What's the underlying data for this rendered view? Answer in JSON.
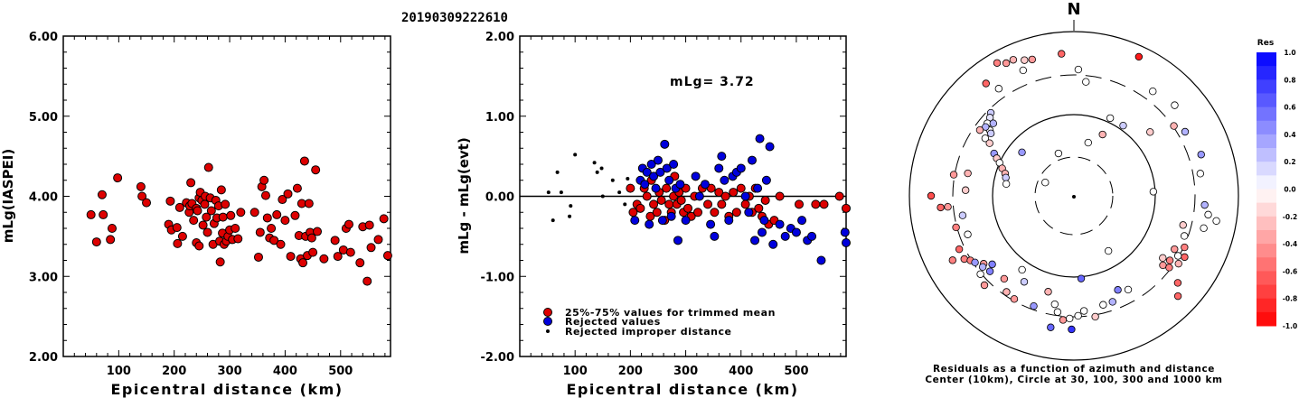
{
  "title": "20190309222610",
  "left_panel": {
    "ylabel": "mLg(IASPEI)",
    "xlabel": "Epicentral distance (km)",
    "yticks": [
      "2.00",
      "3.00",
      "4.00",
      "5.00",
      "6.00"
    ],
    "xticks": [
      "100",
      "200",
      "300",
      "400",
      "500"
    ]
  },
  "middle_panel": {
    "ylabel": "mLg - mLg(evt)",
    "xlabel": "Epicentral distance (km)",
    "yticks": [
      "-2.00",
      "-1.00",
      "0.00",
      "1.00",
      "2.00"
    ],
    "xticks": [
      "100",
      "200",
      "300",
      "400",
      "500"
    ],
    "annotation": "mLg= 3.72",
    "legend": [
      {
        "label": "25%-75% values for trimmed mean",
        "color": "#dd0000"
      },
      {
        "label": "Rejected values",
        "color": "#0000dd"
      },
      {
        "label": "Rejected improper distance",
        "color": "#000000"
      }
    ]
  },
  "polar_panel": {
    "north_label": "N",
    "caption_line1": "Residuals as a function of azimuth and distance",
    "caption_line2": "Center (10km), Circle at 30, 100, 300 and 1000 km"
  },
  "colorbar": {
    "title": "Res",
    "ticks": [
      "1.0",
      "0.8",
      "0.6",
      "0.4",
      "0.2",
      "0.0",
      "-0.2",
      "-0.4",
      "-0.6",
      "-0.8",
      "-1.0"
    ]
  },
  "chart_data": [
    {
      "type": "scatter",
      "title": "20190309222610",
      "xlabel": "Epicentral distance (km)",
      "ylabel": "mLg(IASPEI)",
      "xlim": [
        0,
        590
      ],
      "ylim": [
        2,
        6
      ],
      "series": [
        {
          "color": "#dd0000",
          "points": [
            [
              50,
              3.77
            ],
            [
              60,
              3.43
            ],
            [
              70,
              4.02
            ],
            [
              72,
              3.77
            ],
            [
              85,
              3.46
            ],
            [
              88,
              3.6
            ],
            [
              98,
              4.23
            ],
            [
              140,
              4.12
            ],
            [
              142,
              4.0
            ],
            [
              150,
              3.92
            ],
            [
              190,
              3.65
            ],
            [
              193,
              3.94
            ],
            [
              195,
              3.58
            ],
            [
              205,
              3.61
            ],
            [
              206,
              3.41
            ],
            [
              210,
              3.86
            ],
            [
              215,
              3.5
            ],
            [
              222,
              3.92
            ],
            [
              227,
              3.8
            ],
            [
              228,
              3.88
            ],
            [
              230,
              4.17
            ],
            [
              232,
              3.91
            ],
            [
              235,
              3.7
            ],
            [
              240,
              3.85
            ],
            [
              240,
              3.42
            ],
            [
              242,
              3.82
            ],
            [
              245,
              3.98
            ],
            [
              245,
              3.38
            ],
            [
              247,
              4.05
            ],
            [
              250,
              3.95
            ],
            [
              252,
              3.64
            ],
            [
              255,
              3.9
            ],
            [
              256,
              4.0
            ],
            [
              258,
              3.74
            ],
            [
              260,
              3.55
            ],
            [
              262,
              4.36
            ],
            [
              265,
              3.98
            ],
            [
              267,
              3.82
            ],
            [
              270,
              3.4
            ],
            [
              272,
              3.66
            ],
            [
              275,
              3.95
            ],
            [
              277,
              3.73
            ],
            [
              280,
              3.88
            ],
            [
              282,
              3.44
            ],
            [
              283,
              3.18
            ],
            [
              285,
              4.08
            ],
            [
              287,
              3.54
            ],
            [
              288,
              3.74
            ],
            [
              290,
              3.4
            ],
            [
              292,
              3.9
            ],
            [
              294,
              3.44
            ],
            [
              297,
              3.5
            ],
            [
              300,
              3.58
            ],
            [
              302,
              3.76
            ],
            [
              305,
              3.46
            ],
            [
              310,
              3.6
            ],
            [
              315,
              3.47
            ],
            [
              320,
              3.8
            ],
            [
              345,
              3.8
            ],
            [
              352,
              3.24
            ],
            [
              355,
              3.55
            ],
            [
              358,
              4.12
            ],
            [
              362,
              4.2
            ],
            [
              365,
              4.01
            ],
            [
              368,
              3.73
            ],
            [
              372,
              3.48
            ],
            [
              375,
              3.6
            ],
            [
              380,
              3.45
            ],
            [
              385,
              3.77
            ],
            [
              392,
              3.4
            ],
            [
              395,
              3.96
            ],
            [
              400,
              3.7
            ],
            [
              405,
              4.03
            ],
            [
              410,
              3.25
            ],
            [
              418,
              3.76
            ],
            [
              422,
              4.1
            ],
            [
              425,
              3.51
            ],
            [
              428,
              3.22
            ],
            [
              430,
              3.91
            ],
            [
              432,
              3.17
            ],
            [
              435,
              4.44
            ],
            [
              437,
              3.5
            ],
            [
              440,
              3.26
            ],
            [
              443,
              3.91
            ],
            [
              445,
              3.55
            ],
            [
              448,
              3.48
            ],
            [
              450,
              3.3
            ],
            [
              455,
              4.33
            ],
            [
              458,
              3.56
            ],
            [
              470,
              3.22
            ],
            [
              490,
              3.45
            ],
            [
              495,
              3.25
            ],
            [
              505,
              3.33
            ],
            [
              510,
              3.6
            ],
            [
              515,
              3.65
            ],
            [
              518,
              3.3
            ],
            [
              535,
              3.17
            ],
            [
              540,
              3.62
            ],
            [
              548,
              2.94
            ],
            [
              552,
              3.64
            ],
            [
              555,
              3.36
            ],
            [
              568,
              3.46
            ],
            [
              578,
              3.72
            ],
            [
              585,
              3.26
            ]
          ]
        }
      ]
    },
    {
      "type": "scatter",
      "xlabel": "Epicentral distance (km)",
      "ylabel": "mLg - mLg(evt)",
      "xlim": [
        0,
        590
      ],
      "ylim": [
        -2,
        2
      ],
      "series": [
        {
          "name": "25%-75% values for trimmed mean",
          "color": "#dd0000",
          "points": [
            [
              200,
              0.1
            ],
            [
              205,
              -0.2
            ],
            [
              212,
              -0.1
            ],
            [
              218,
              -0.15
            ],
            [
              225,
              0.1
            ],
            [
              230,
              0.0
            ],
            [
              236,
              -0.25
            ],
            [
              238,
              0.2
            ],
            [
              242,
              -0.1
            ],
            [
              248,
              -0.2
            ],
            [
              252,
              0.05
            ],
            [
              256,
              -0.05
            ],
            [
              262,
              -0.3
            ],
            [
              265,
              0.1
            ],
            [
              270,
              -0.1
            ],
            [
              274,
              -0.2
            ],
            [
              278,
              0.0
            ],
            [
              280,
              0.25
            ],
            [
              284,
              -0.1
            ],
            [
              288,
              0.05
            ],
            [
              292,
              -0.05
            ],
            [
              296,
              -0.2
            ],
            [
              300,
              0.1
            ],
            [
              304,
              -0.15
            ],
            [
              310,
              -0.25
            ],
            [
              316,
              0.0
            ],
            [
              322,
              -0.2
            ],
            [
              330,
              0.1
            ],
            [
              340,
              -0.1
            ],
            [
              346,
              0.1
            ],
            [
              352,
              -0.2
            ],
            [
              360,
              0.05
            ],
            [
              365,
              -0.1
            ],
            [
              372,
              0.0
            ],
            [
              378,
              -0.25
            ],
            [
              386,
              0.05
            ],
            [
              392,
              -0.2
            ],
            [
              400,
              0.1
            ],
            [
              408,
              -0.1
            ],
            [
              415,
              0.0
            ],
            [
              420,
              -0.2
            ],
            [
              426,
              0.1
            ],
            [
              432,
              -0.15
            ],
            [
              438,
              -0.25
            ],
            [
              444,
              -0.05
            ],
            [
              450,
              -0.35
            ],
            [
              460,
              -0.3
            ],
            [
              470,
              0.0
            ],
            [
              505,
              -0.1
            ],
            [
              535,
              -0.1
            ],
            [
              550,
              -0.1
            ],
            [
              578,
              0.0
            ],
            [
              590,
              -0.15
            ]
          ]
        },
        {
          "name": "Rejected values",
          "color": "#0000dd",
          "points": [
            [
              208,
              -0.3
            ],
            [
              218,
              0.2
            ],
            [
              222,
              0.35
            ],
            [
              226,
              0.15
            ],
            [
              230,
              0.3
            ],
            [
              234,
              -0.35
            ],
            [
              238,
              0.4
            ],
            [
              242,
              0.25
            ],
            [
              246,
              0.1
            ],
            [
              250,
              0.45
            ],
            [
              254,
              0.3
            ],
            [
              258,
              -0.3
            ],
            [
              262,
              0.65
            ],
            [
              266,
              0.35
            ],
            [
              270,
              0.2
            ],
            [
              274,
              -0.25
            ],
            [
              278,
              0.4
            ],
            [
              282,
              0.1
            ],
            [
              286,
              -0.55
            ],
            [
              290,
              0.15
            ],
            [
              300,
              -0.3
            ],
            [
              318,
              0.25
            ],
            [
              325,
              0.0
            ],
            [
              335,
              0.15
            ],
            [
              345,
              -0.35
            ],
            [
              352,
              -0.5
            ],
            [
              360,
              0.35
            ],
            [
              365,
              0.5
            ],
            [
              370,
              0.2
            ],
            [
              378,
              -0.3
            ],
            [
              385,
              0.25
            ],
            [
              392,
              0.3
            ],
            [
              400,
              0.35
            ],
            [
              408,
              0.0
            ],
            [
              414,
              -0.2
            ],
            [
              420,
              0.45
            ],
            [
              425,
              -0.55
            ],
            [
              430,
              0.1
            ],
            [
              434,
              0.72
            ],
            [
              438,
              -0.45
            ],
            [
              442,
              -0.3
            ],
            [
              446,
              0.2
            ],
            [
              452,
              0.62
            ],
            [
              458,
              -0.6
            ],
            [
              470,
              -0.35
            ],
            [
              480,
              -0.5
            ],
            [
              490,
              -0.4
            ],
            [
              500,
              -0.45
            ],
            [
              510,
              -0.3
            ],
            [
              520,
              -0.55
            ],
            [
              528,
              -0.5
            ],
            [
              545,
              -0.8
            ],
            [
              588,
              -0.45
            ],
            [
              590,
              -0.58
            ]
          ]
        },
        {
          "name": "Rejected improper distance",
          "color": "#000000",
          "points": [
            [
              52,
              0.05
            ],
            [
              60,
              -0.3
            ],
            [
              68,
              0.3
            ],
            [
              75,
              0.05
            ],
            [
              90,
              -0.25
            ],
            [
              92,
              -0.12
            ],
            [
              100,
              0.52
            ],
            [
              135,
              0.42
            ],
            [
              140,
              0.3
            ],
            [
              148,
              0.35
            ],
            [
              150,
              0.0
            ],
            [
              168,
              0.2
            ],
            [
              180,
              0.05
            ],
            [
              190,
              -0.1
            ],
            [
              195,
              0.22
            ]
          ]
        }
      ]
    }
  ]
}
